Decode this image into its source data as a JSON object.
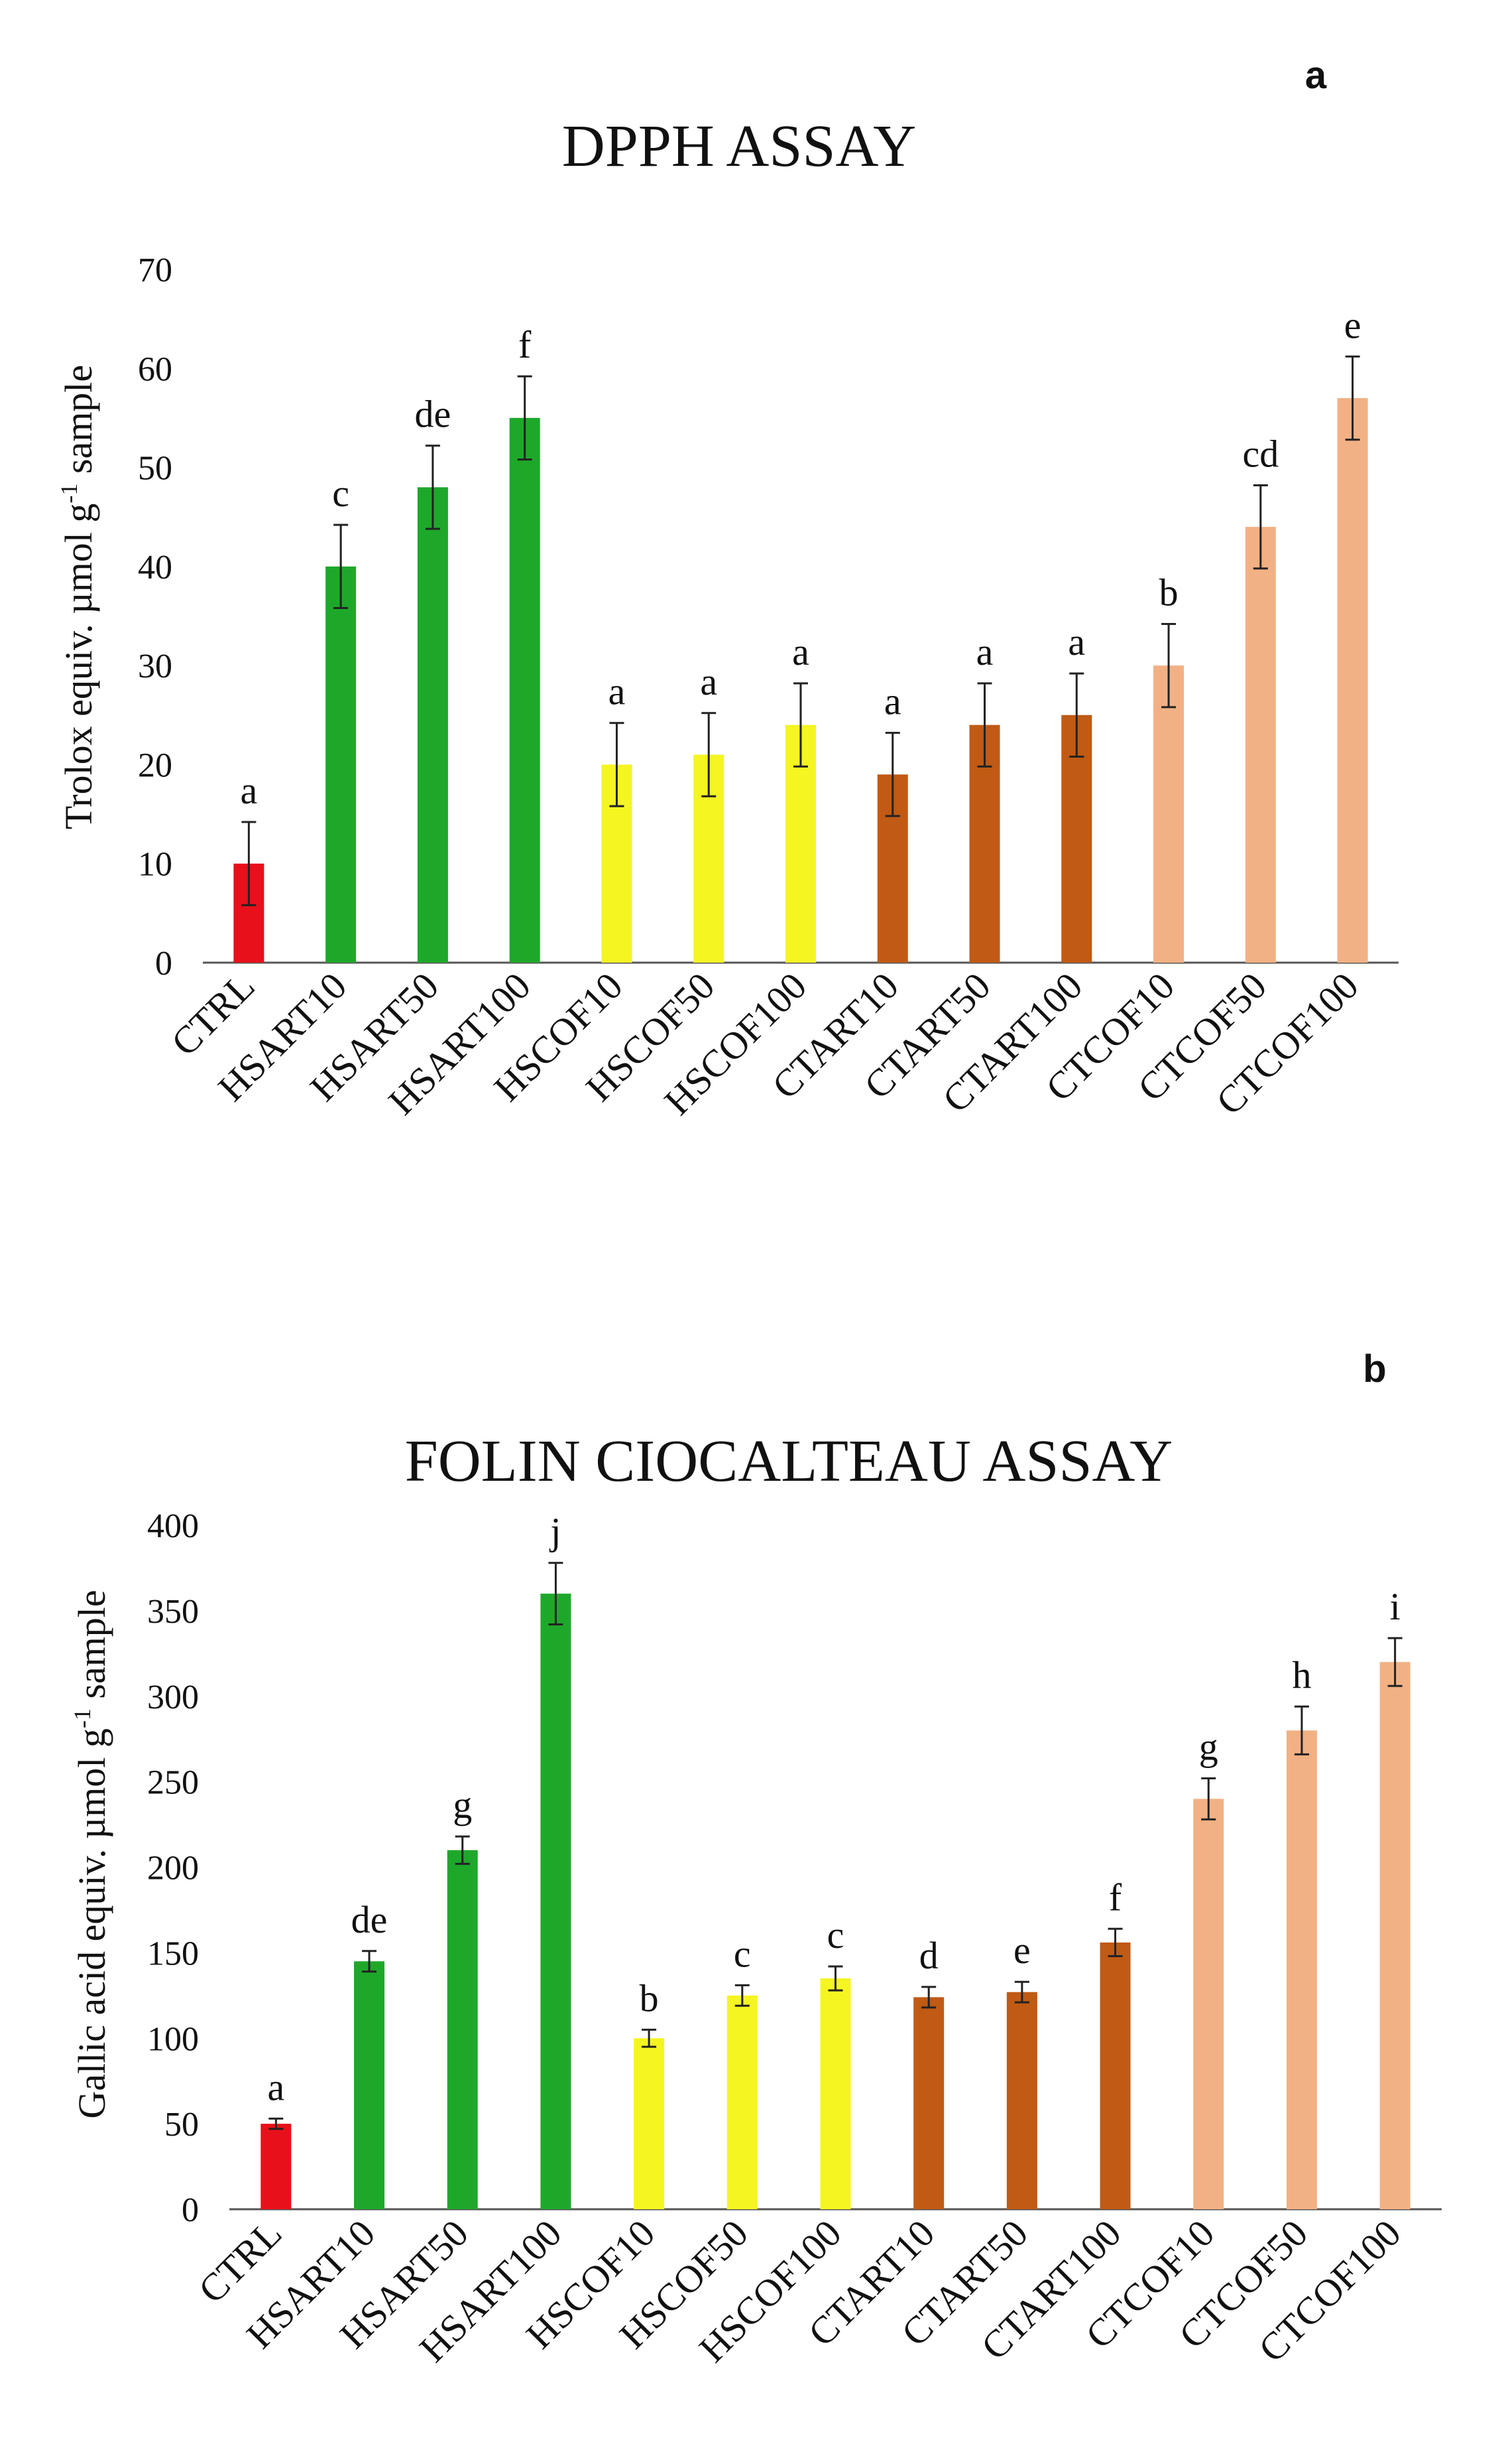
{
  "chart_data": [
    {
      "panel": "a",
      "type": "bar",
      "title": "DPPH ASSAY",
      "xlabel": "",
      "ylabel": "Trolox equiv. µmol g-1 sample",
      "ylabel_parts": [
        "Trolox equiv. µmol g",
        "-1",
        " sample"
      ],
      "ylim": [
        0,
        70
      ],
      "yticks": [
        0,
        10,
        20,
        30,
        40,
        50,
        60,
        70
      ],
      "grid": false,
      "categories": [
        "CTRL",
        "HSART10",
        "HSART50",
        "HSART100",
        "HSCOF10",
        "HSCOF50",
        "HSCOF100",
        "CTART10",
        "CTART50",
        "CTART100",
        "CTCOF10",
        "CTCOF50",
        "CTCOF100"
      ],
      "values": [
        10,
        40,
        48,
        55,
        20,
        21,
        24,
        19,
        24,
        25,
        30,
        44,
        57
      ],
      "errors": [
        4.2,
        4.2,
        4.2,
        4.2,
        4.2,
        4.2,
        4.2,
        4.2,
        4.2,
        4.2,
        4.2,
        4.2,
        4.2
      ],
      "letters": [
        "a",
        "c",
        "de",
        "f",
        "a",
        "a",
        "a",
        "a",
        "a",
        "a",
        "b",
        "cd",
        "e"
      ],
      "colors": [
        "#e8101a",
        "#1ea82a",
        "#1ea82a",
        "#1ea82a",
        "#f5f522",
        "#f5f522",
        "#f5f522",
        "#c05a14",
        "#c05a14",
        "#c05a14",
        "#f2b184",
        "#f2b184",
        "#f2b184"
      ]
    },
    {
      "panel": "b",
      "type": "bar",
      "title": "FOLIN CIOCALTEAU  ASSAY",
      "xlabel": "",
      "ylabel": "Gallic acid equiv. µmol g-1 sample",
      "ylabel_parts": [
        "Gallic acid equiv. µmol g",
        "-1",
        " sample"
      ],
      "ylim": [
        0,
        400
      ],
      "yticks": [
        0,
        50,
        100,
        150,
        200,
        250,
        300,
        350,
        400
      ],
      "grid": false,
      "categories": [
        "CTRL",
        "HSART10",
        "HSART50",
        "HSART100",
        "HSCOF10",
        "HSCOF50",
        "HSCOF100",
        "CTART10",
        "CTART50",
        "CTART100",
        "CTCOF10",
        "CTCOF50",
        "CTCOF100"
      ],
      "values": [
        50,
        145,
        210,
        360,
        100,
        125,
        135,
        124,
        127,
        156,
        240,
        280,
        320
      ],
      "errors": [
        3,
        6,
        8,
        18,
        5,
        6,
        7,
        6,
        6,
        8,
        12,
        14,
        14
      ],
      "letters": [
        "a",
        "de",
        "g",
        "j",
        "b",
        "c",
        "c",
        "d",
        "e",
        "f",
        "g",
        "h",
        "i"
      ],
      "colors": [
        "#e8101a",
        "#1ea82a",
        "#1ea82a",
        "#1ea82a",
        "#f5f522",
        "#f5f522",
        "#f5f522",
        "#c05a14",
        "#c05a14",
        "#c05a14",
        "#f2b184",
        "#f2b184",
        "#f2b184"
      ]
    }
  ]
}
